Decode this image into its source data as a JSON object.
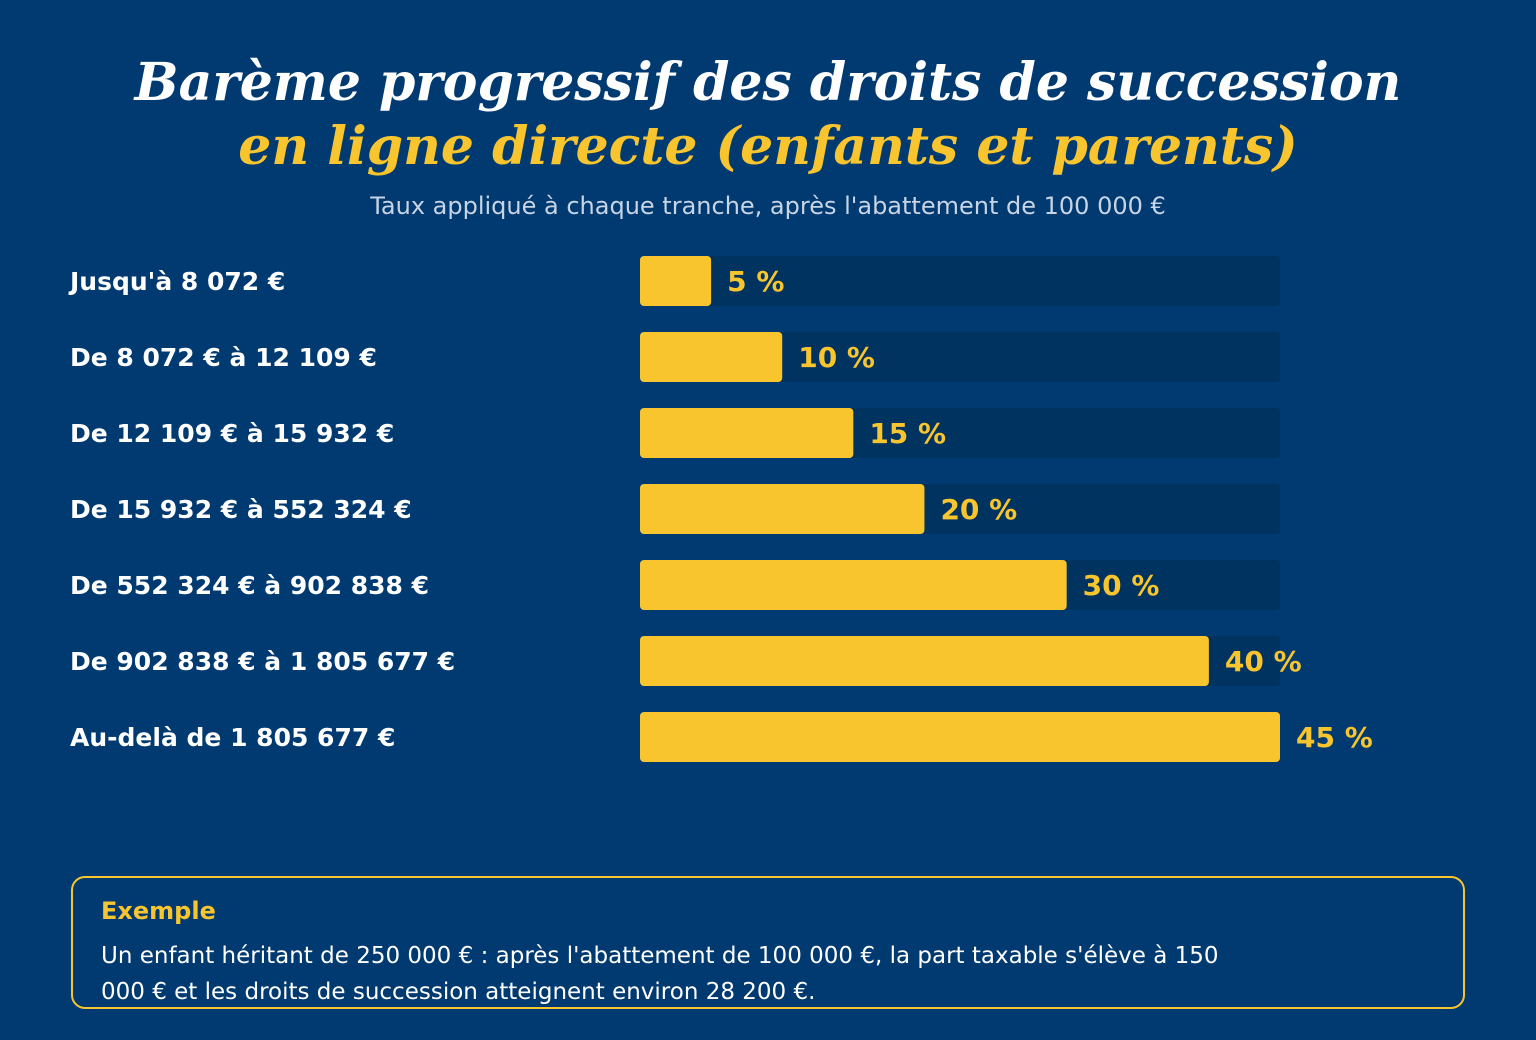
{
  "header": {
    "title_line1": "Barème progressif des droits de succession",
    "title_line2": "en ligne directe (enfants et parents)",
    "subtitle": "Taux appliqué à chaque tranche, après l'abattement de 100 000 €"
  },
  "colors": {
    "background": "#003a70",
    "bar": "#f9c52f",
    "track": "#00335f",
    "accent": "#f9c52f",
    "text": "#ffffff"
  },
  "chart_data": {
    "type": "bar",
    "orientation": "horizontal",
    "categories": [
      "Jusqu'à 8 072 €",
      "De 8 072 € à 12 109 €",
      "De 12 109 € à 15 932 €",
      "De 15 932 € à 552 324 €",
      "De 552 324 € à 902 838 €",
      "De 902 838 € à 1 805 677 €",
      "Au-delà de 1 805 677 €"
    ],
    "values": [
      5,
      10,
      15,
      20,
      30,
      40,
      45
    ],
    "value_labels": [
      "5 %",
      "10 %",
      "15 %",
      "20 %",
      "30 %",
      "40 %",
      "45 %"
    ],
    "xlim": [
      0,
      45
    ],
    "unit": "%",
    "grid": false,
    "legend": "none"
  },
  "example": {
    "title": "Exemple",
    "text": "Un enfant héritant de 250 000 € : après l'abattement de 100 000 €, la part taxable s'élève à 150 000 € et les droits de succession atteignent environ 28 200 €."
  }
}
